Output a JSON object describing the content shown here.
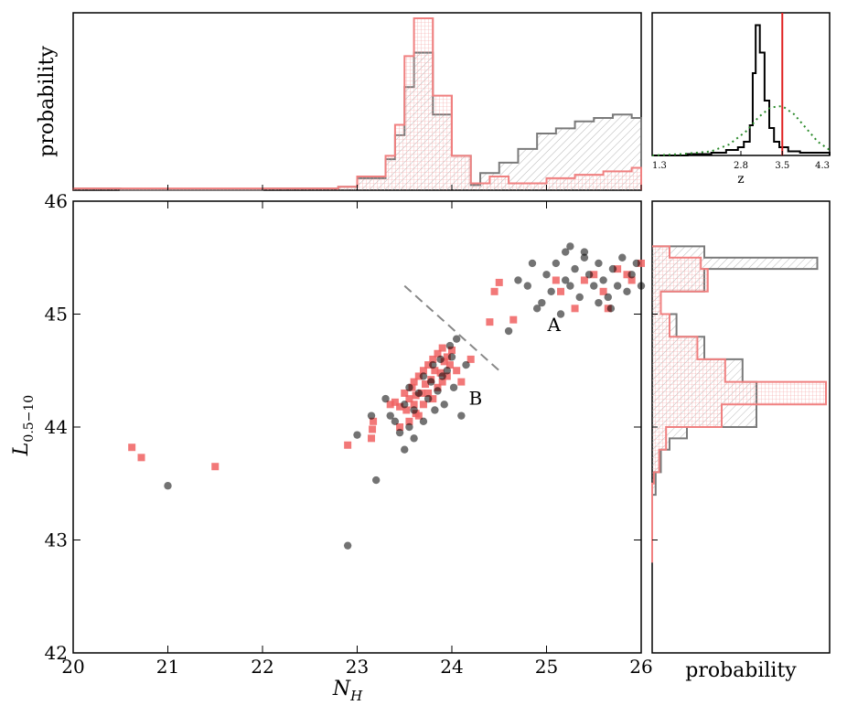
{
  "colors": {
    "black_series": "#000000",
    "red_series": "#f08080",
    "red_points": "#f06060",
    "gray_hist": "#7a7a7a",
    "z_line": "#e02020",
    "z_prior": "#2a8a2a"
  },
  "chart_data": [
    {
      "id": "scatter",
      "type": "scatter",
      "xlabel_main": "N",
      "xlabel_sub": "H",
      "ylabel_main": "L",
      "ylabel_sub": "0.5−10",
      "xlim": [
        20,
        26
      ],
      "ylim": [
        42,
        46
      ],
      "xticks": [
        20,
        21,
        22,
        23,
        24,
        25,
        26
      ],
      "xtick_labels": [
        "20",
        "21",
        "22",
        "23",
        "24",
        "25",
        "26"
      ],
      "yticks": [
        42,
        43,
        44,
        45,
        46
      ],
      "ytick_labels": [
        "42",
        "43",
        "44",
        "45",
        "46"
      ],
      "annotations": [
        {
          "text": "A",
          "x": 25.08,
          "y": 44.85
        },
        {
          "text": "B",
          "x": 24.25,
          "y": 44.2
        }
      ],
      "divider_line": [
        [
          23.5,
          45.25
        ],
        [
          24.5,
          44.5
        ]
      ],
      "series": [
        {
          "color_key": "red_points",
          "marker": "square",
          "points": [
            [
              20.62,
              43.82
            ],
            [
              20.72,
              43.73
            ],
            [
              21.5,
              43.65
            ],
            [
              22.9,
              43.84
            ],
            [
              23.15,
              43.9
            ],
            [
              23.16,
              43.98
            ],
            [
              23.17,
              44.05
            ],
            [
              23.35,
              44.2
            ],
            [
              23.4,
              44.22
            ],
            [
              23.45,
              44.18
            ],
            [
              23.5,
              44.3
            ],
            [
              23.52,
              44.15
            ],
            [
              23.55,
              44.25
            ],
            [
              23.58,
              44.35
            ],
            [
              23.6,
              44.4
            ],
            [
              23.6,
              44.2
            ],
            [
              23.62,
              44.28
            ],
            [
              23.65,
              44.45
            ],
            [
              23.65,
              44.1
            ],
            [
              23.68,
              44.3
            ],
            [
              23.7,
              44.5
            ],
            [
              23.7,
              44.2
            ],
            [
              23.72,
              44.38
            ],
            [
              23.75,
              44.55
            ],
            [
              23.75,
              44.3
            ],
            [
              23.78,
              44.42
            ],
            [
              23.8,
              44.6
            ],
            [
              23.8,
              44.25
            ],
            [
              23.82,
              44.5
            ],
            [
              23.85,
              44.65
            ],
            [
              23.85,
              44.35
            ],
            [
              23.88,
              44.48
            ],
            [
              23.9,
              44.7
            ],
            [
              23.9,
              44.4
            ],
            [
              23.92,
              44.58
            ],
            [
              23.95,
              44.62
            ],
            [
              23.95,
              44.45
            ],
            [
              23.98,
              44.55
            ],
            [
              24.0,
              44.68
            ],
            [
              24.05,
              44.5
            ],
            [
              24.1,
              44.4
            ],
            [
              23.55,
              44.05
            ],
            [
              23.62,
              44.12
            ],
            [
              23.45,
              44.0
            ],
            [
              24.2,
              44.6
            ],
            [
              24.4,
              44.93
            ],
            [
              24.45,
              45.2
            ],
            [
              24.5,
              45.28
            ],
            [
              24.65,
              44.95
            ],
            [
              25.1,
              45.3
            ],
            [
              25.15,
              45.2
            ],
            [
              25.3,
              45.05
            ],
            [
              25.4,
              45.3
            ],
            [
              25.5,
              45.35
            ],
            [
              25.6,
              45.2
            ],
            [
              25.65,
              45.05
            ],
            [
              25.75,
              45.4
            ],
            [
              25.85,
              45.35
            ],
            [
              25.9,
              45.3
            ],
            [
              26.0,
              45.45
            ]
          ]
        },
        {
          "color_key": "black_series",
          "marker": "circle",
          "points": [
            [
              21.0,
              43.48
            ],
            [
              22.9,
              42.95
            ],
            [
              23.2,
              43.53
            ],
            [
              23.0,
              43.93
            ],
            [
              23.15,
              44.1
            ],
            [
              23.3,
              44.25
            ],
            [
              23.35,
              44.1
            ],
            [
              23.4,
              44.05
            ],
            [
              23.45,
              43.95
            ],
            [
              23.5,
              44.2
            ],
            [
              23.5,
              43.8
            ],
            [
              23.55,
              44.35
            ],
            [
              23.55,
              44.0
            ],
            [
              23.6,
              44.15
            ],
            [
              23.6,
              43.9
            ],
            [
              23.65,
              44.3
            ],
            [
              23.7,
              44.45
            ],
            [
              23.7,
              44.05
            ],
            [
              23.75,
              44.25
            ],
            [
              23.78,
              44.4
            ],
            [
              23.8,
              44.55
            ],
            [
              23.82,
              44.15
            ],
            [
              23.85,
              44.32
            ],
            [
              23.88,
              44.6
            ],
            [
              23.9,
              44.45
            ],
            [
              23.92,
              44.2
            ],
            [
              23.95,
              44.5
            ],
            [
              23.98,
              44.72
            ],
            [
              24.0,
              44.62
            ],
            [
              24.02,
              44.35
            ],
            [
              24.05,
              44.78
            ],
            [
              24.1,
              44.1
            ],
            [
              24.15,
              44.55
            ],
            [
              24.6,
              44.85
            ],
            [
              24.9,
              45.05
            ],
            [
              24.8,
              45.25
            ],
            [
              24.95,
              45.1
            ],
            [
              25.0,
              45.35
            ],
            [
              25.05,
              45.2
            ],
            [
              25.1,
              45.45
            ],
            [
              25.15,
              45.0
            ],
            [
              25.2,
              45.55
            ],
            [
              25.2,
              45.3
            ],
            [
              25.25,
              45.25
            ],
            [
              25.3,
              45.4
            ],
            [
              25.35,
              45.15
            ],
            [
              25.4,
              45.5
            ],
            [
              25.45,
              45.35
            ],
            [
              25.5,
              45.25
            ],
            [
              25.55,
              45.45
            ],
            [
              25.6,
              45.3
            ],
            [
              25.65,
              45.15
            ],
            [
              25.7,
              45.4
            ],
            [
              25.75,
              45.25
            ],
            [
              25.8,
              45.5
            ],
            [
              25.85,
              45.2
            ],
            [
              25.9,
              45.35
            ],
            [
              25.95,
              45.45
            ],
            [
              26.0,
              45.25
            ],
            [
              24.85,
              45.45
            ],
            [
              24.7,
              45.3
            ],
            [
              25.25,
              45.6
            ],
            [
              25.4,
              45.55
            ],
            [
              25.55,
              45.1
            ],
            [
              25.68,
              45.05
            ]
          ]
        }
      ]
    },
    {
      "id": "nh-hist",
      "type": "step-histogram",
      "ylabel": "probability",
      "xlim": [
        20,
        26
      ],
      "series": [
        {
          "color_key": "gray_hist",
          "fill": "hatch-diagonal",
          "steps": [
            [
              20.0,
              0.01
            ],
            [
              20.5,
              0.0
            ],
            [
              22.0,
              0.01
            ],
            [
              22.8,
              0.02
            ],
            [
              23.0,
              0.07
            ],
            [
              23.3,
              0.18
            ],
            [
              23.4,
              0.32
            ],
            [
              23.5,
              0.6
            ],
            [
              23.6,
              0.8
            ],
            [
              23.8,
              0.44
            ],
            [
              24.0,
              0.2
            ],
            [
              24.2,
              0.03
            ],
            [
              24.3,
              0.1
            ],
            [
              24.5,
              0.16
            ],
            [
              24.7,
              0.24
            ],
            [
              24.9,
              0.33
            ],
            [
              25.1,
              0.36
            ],
            [
              25.3,
              0.4
            ],
            [
              25.5,
              0.42
            ],
            [
              25.7,
              0.44
            ],
            [
              25.9,
              0.42
            ],
            [
              26.0,
              0.42
            ]
          ]
        },
        {
          "color_key": "red_series",
          "fill": "hatch-grid",
          "steps": [
            [
              20.0,
              0.01
            ],
            [
              20.5,
              0.01
            ],
            [
              21.2,
              0.01
            ],
            [
              22.0,
              0.01
            ],
            [
              22.8,
              0.02
            ],
            [
              23.0,
              0.08
            ],
            [
              23.3,
              0.2
            ],
            [
              23.4,
              0.38
            ],
            [
              23.5,
              0.78
            ],
            [
              23.6,
              1.0
            ],
            [
              23.8,
              0.55
            ],
            [
              24.0,
              0.2
            ],
            [
              24.2,
              0.04
            ],
            [
              24.4,
              0.08
            ],
            [
              24.6,
              0.04
            ],
            [
              25.0,
              0.07
            ],
            [
              25.3,
              0.09
            ],
            [
              25.6,
              0.11
            ],
            [
              25.9,
              0.13
            ],
            [
              26.0,
              0.13
            ]
          ]
        }
      ]
    },
    {
      "id": "z-hist",
      "type": "step-histogram",
      "xlabel": "z",
      "xticks": [
        1.3,
        2.8,
        3.5,
        4.3
      ],
      "xtick_labels": [
        "1.3",
        "2.8",
        "3.5",
        "4.3"
      ],
      "xlim": [
        1.3,
        4.3
      ],
      "z_line": 3.5,
      "series": [
        {
          "color_key": "black_series",
          "fill": "none",
          "steps": [
            [
              1.3,
              0.0
            ],
            [
              1.9,
              0.01
            ],
            [
              2.3,
              0.02
            ],
            [
              2.55,
              0.04
            ],
            [
              2.75,
              0.06
            ],
            [
              2.85,
              0.1
            ],
            [
              2.95,
              0.22
            ],
            [
              3.0,
              0.6
            ],
            [
              3.05,
              0.95
            ],
            [
              3.12,
              0.75
            ],
            [
              3.2,
              0.4
            ],
            [
              3.28,
              0.2
            ],
            [
              3.36,
              0.1
            ],
            [
              3.45,
              0.06
            ],
            [
              3.6,
              0.03
            ],
            [
              3.8,
              0.02
            ],
            [
              4.3,
              0.0
            ]
          ]
        }
      ],
      "prior_curve": {
        "color_key": "z_prior",
        "points": [
          [
            1.3,
            0.0
          ],
          [
            1.8,
            0.01
          ],
          [
            2.3,
            0.03
          ],
          [
            2.6,
            0.08
          ],
          [
            2.9,
            0.18
          ],
          [
            3.1,
            0.28
          ],
          [
            3.3,
            0.35
          ],
          [
            3.5,
            0.36
          ],
          [
            3.7,
            0.3
          ],
          [
            3.9,
            0.2
          ],
          [
            4.1,
            0.1
          ],
          [
            4.3,
            0.04
          ]
        ]
      }
    },
    {
      "id": "l-hist",
      "type": "step-histogram-horizontal",
      "xlabel": "probability",
      "ylim": [
        42,
        46
      ],
      "series": [
        {
          "color_key": "gray_hist",
          "fill": "hatch-diagonal",
          "steps": [
            [
              42.8,
              0.0
            ],
            [
              43.4,
              0.02
            ],
            [
              43.6,
              0.05
            ],
            [
              43.8,
              0.1
            ],
            [
              43.9,
              0.2
            ],
            [
              44.0,
              0.6
            ],
            [
              44.2,
              0.6
            ],
            [
              44.4,
              0.52
            ],
            [
              44.6,
              0.3
            ],
            [
              44.8,
              0.14
            ],
            [
              45.0,
              0.05
            ],
            [
              45.2,
              0.3
            ],
            [
              45.4,
              0.95
            ],
            [
              45.5,
              0.3
            ],
            [
              45.6,
              0.3
            ]
          ]
        },
        {
          "color_key": "red_series",
          "fill": "hatch-grid",
          "steps": [
            [
              42.8,
              0.0
            ],
            [
              43.5,
              0.01
            ],
            [
              43.6,
              0.04
            ],
            [
              43.8,
              0.08
            ],
            [
              44.0,
              0.4
            ],
            [
              44.2,
              1.0
            ],
            [
              44.4,
              0.42
            ],
            [
              44.6,
              0.26
            ],
            [
              44.8,
              0.1
            ],
            [
              45.0,
              0.05
            ],
            [
              45.2,
              0.32
            ],
            [
              45.4,
              0.28
            ],
            [
              45.5,
              0.1
            ],
            [
              45.6,
              0.1
            ]
          ]
        }
      ]
    }
  ]
}
